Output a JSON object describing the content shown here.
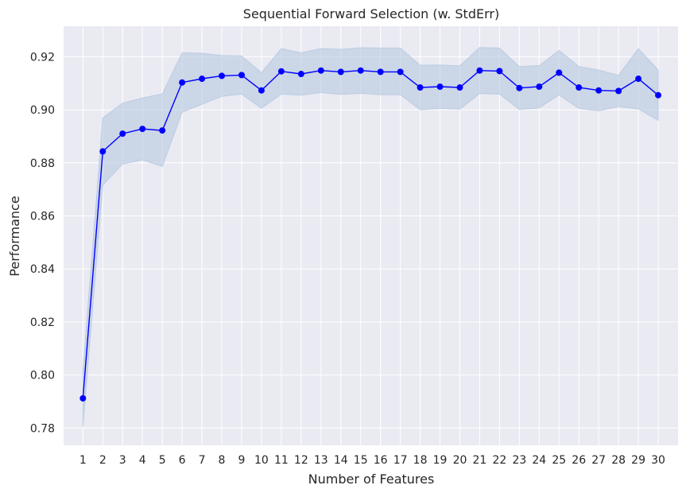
{
  "chart_data": {
    "type": "line",
    "title": "Sequential Forward Selection (w. StdErr)",
    "xlabel": "Number of Features",
    "ylabel": "Performance",
    "ylim": [
      0.7735,
      0.9315
    ],
    "y_ticks": [
      "0.78",
      "0.80",
      "0.82",
      "0.84",
      "0.86",
      "0.88",
      "0.90",
      "0.92"
    ],
    "grid": true,
    "background": "#eaeaf2",
    "line_color": "#0000ff",
    "band_color": "#b0c4de",
    "x": [
      1,
      2,
      3,
      4,
      5,
      6,
      7,
      8,
      9,
      10,
      11,
      12,
      13,
      14,
      15,
      16,
      17,
      18,
      19,
      20,
      21,
      22,
      23,
      24,
      25,
      26,
      27,
      28,
      29,
      30
    ],
    "values": [
      0.7912,
      0.8843,
      0.891,
      0.8928,
      0.8922,
      0.9103,
      0.9117,
      0.9128,
      0.9131,
      0.9073,
      0.9145,
      0.9135,
      0.9148,
      0.9143,
      0.9148,
      0.9143,
      0.9143,
      0.9084,
      0.9087,
      0.9084,
      0.9148,
      0.9146,
      0.9082,
      0.9087,
      0.914,
      0.9084,
      0.9073,
      0.9071,
      0.9117,
      0.9055
    ],
    "upper": [
      0.802,
      0.897,
      0.9025,
      0.9045,
      0.906,
      0.9215,
      0.9213,
      0.9205,
      0.9203,
      0.914,
      0.9231,
      0.9215,
      0.9231,
      0.9228,
      0.9234,
      0.9233,
      0.9233,
      0.9168,
      0.9169,
      0.9166,
      0.9235,
      0.9233,
      0.9163,
      0.9167,
      0.9224,
      0.9163,
      0.915,
      0.913,
      0.9231,
      0.915
    ],
    "lower": [
      0.7804,
      0.8716,
      0.8795,
      0.8811,
      0.8786,
      0.8991,
      0.9021,
      0.9051,
      0.9059,
      0.9006,
      0.9059,
      0.9055,
      0.9065,
      0.9058,
      0.9062,
      0.9057,
      0.9057,
      0.9,
      0.9005,
      0.9002,
      0.9061,
      0.9059,
      0.9001,
      0.9007,
      0.9056,
      0.9005,
      0.8996,
      0.9012,
      0.9003,
      0.896
    ]
  }
}
